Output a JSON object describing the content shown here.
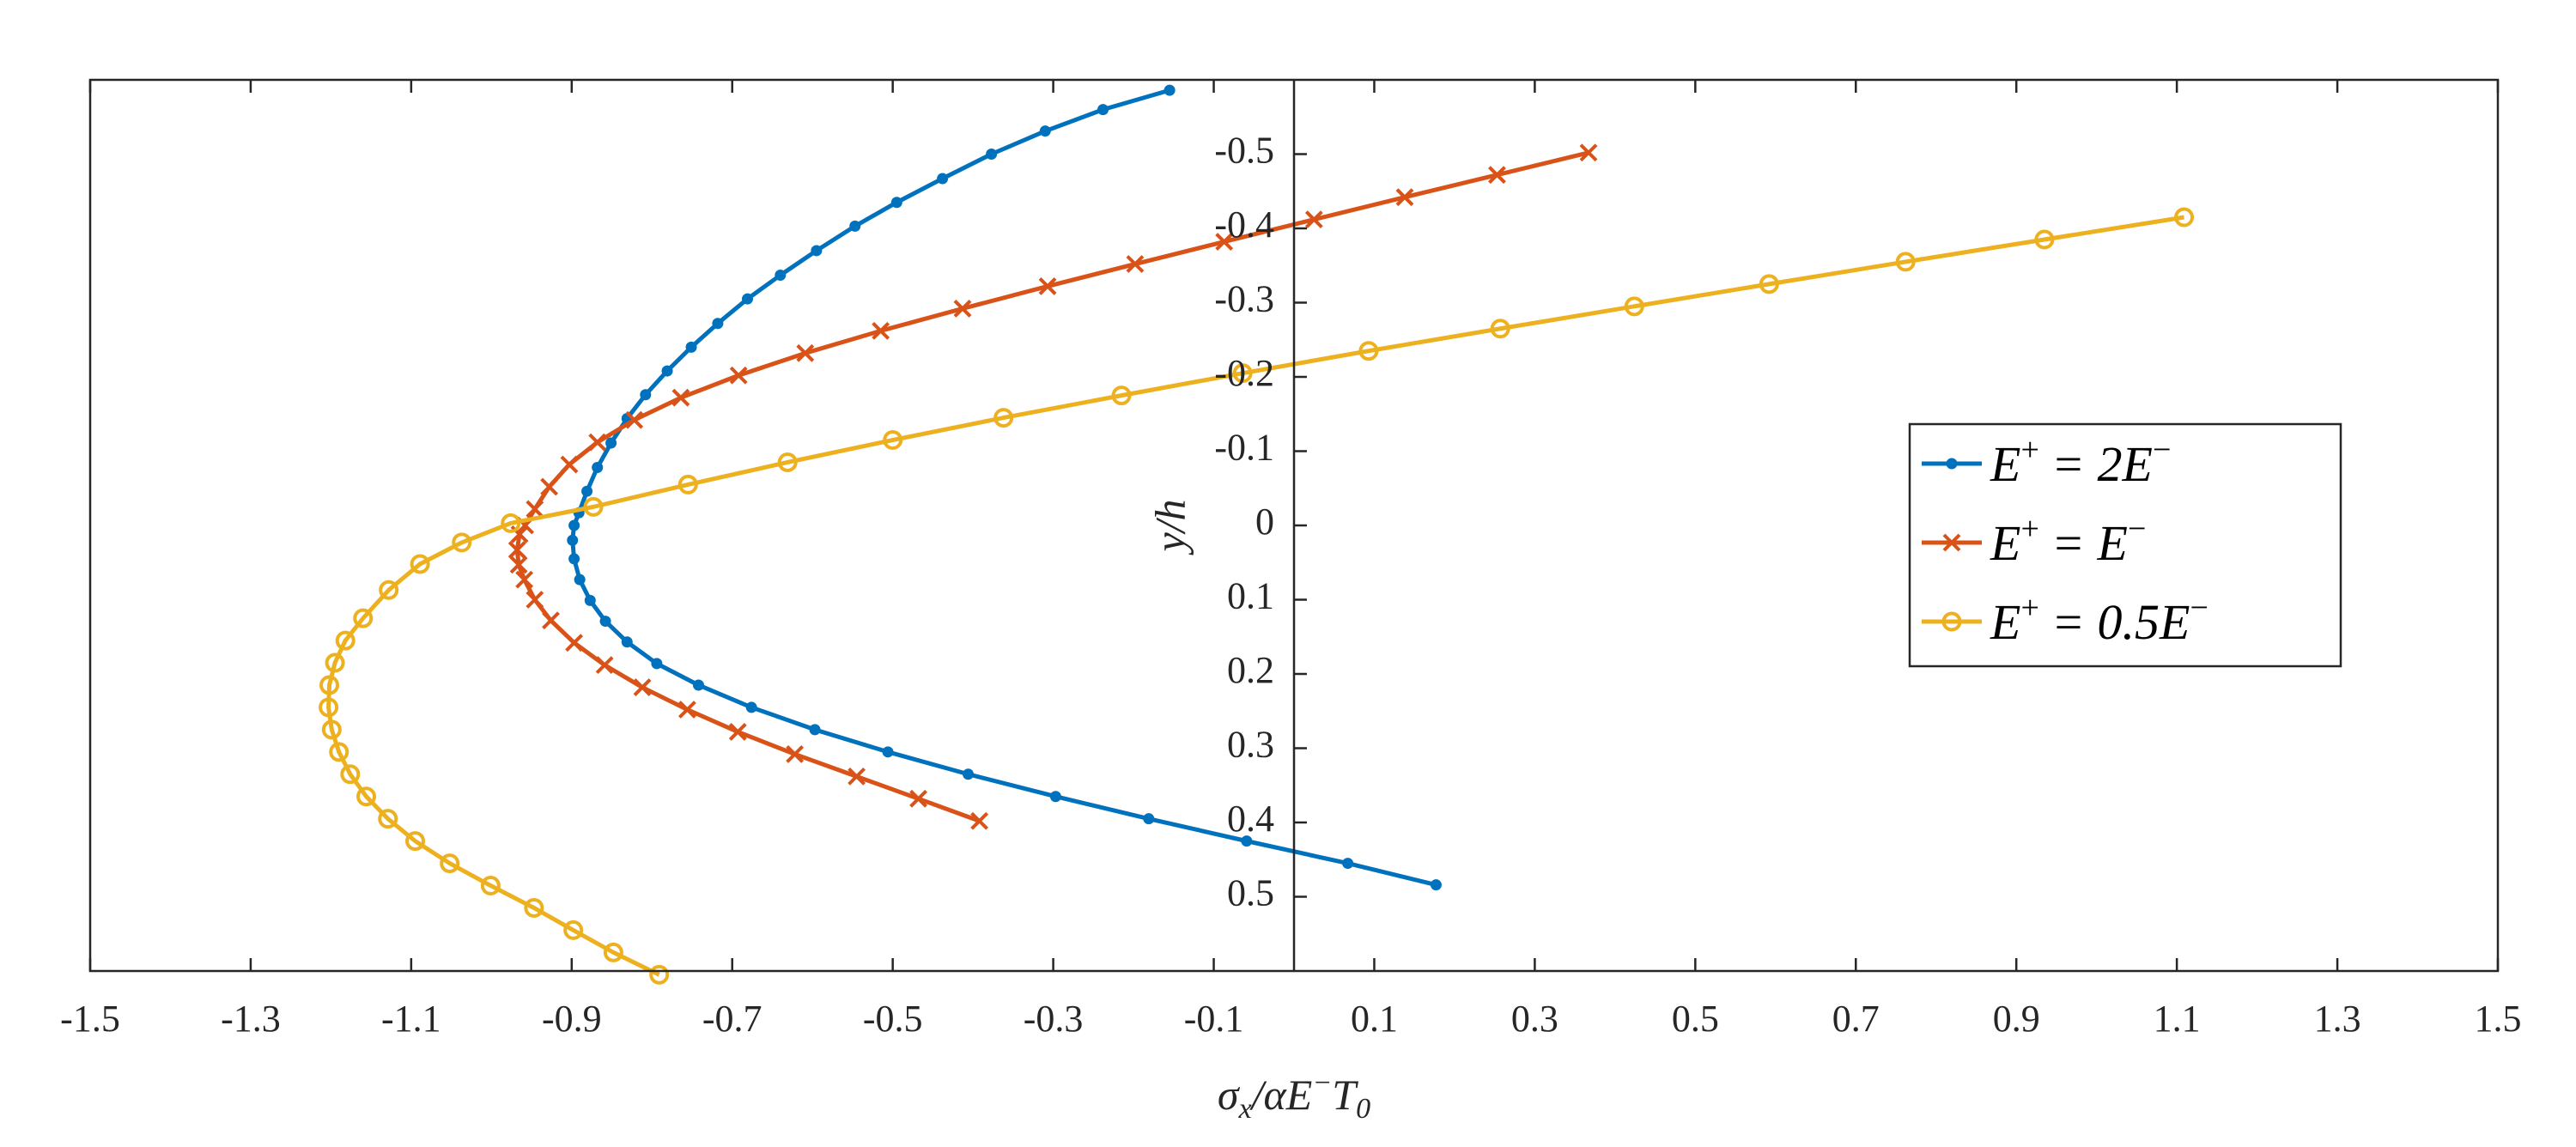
{
  "chart_data": {
    "type": "line",
    "xlabel": "σx/αE⁻T0",
    "xlabel_main": "σ",
    "xlabel_sub1": "x",
    "xlabel_mid": "/αE",
    "xlabel_sup": "−",
    "xlabel_t": "T",
    "xlabel_sub2": "0",
    "ylabel": "y/h",
    "xlim": [
      -1.5,
      1.5
    ],
    "ylim": [
      0.6,
      -0.6
    ],
    "x_ticks": [
      -1.5,
      -1.3,
      -1.1,
      -0.9,
      -0.7,
      -0.5,
      -0.3,
      -0.1,
      0.1,
      0.3,
      0.5,
      0.7,
      0.9,
      1.1,
      1.3,
      1.5
    ],
    "x_tick_labels": [
      "-1.5",
      "-1.3",
      "-1.1",
      "-0.9",
      "-0.7",
      "-0.5",
      "-0.3",
      "-0.1",
      "0.1",
      "0.3",
      "0.5",
      "0.7",
      "0.9",
      "1.1",
      "1.3",
      "1.5"
    ],
    "y_ticks": [
      -0.5,
      -0.4,
      -0.3,
      -0.2,
      -0.1,
      0,
      0.1,
      0.2,
      0.3,
      0.4,
      0.5
    ],
    "y_tick_labels": [
      "-0.5",
      "-0.4",
      "-0.3",
      "-0.2",
      "-0.1",
      "0",
      "0.1",
      "0.2",
      "0.3",
      "0.4",
      "0.5"
    ],
    "legend_position": "right",
    "series": [
      {
        "name": "E⁺ = 2E⁻",
        "legend": {
          "lhs": "E",
          "lhs_sup": "+",
          "rhs": "= 2E",
          "rhs_sup": "−"
        },
        "color": "#0072BD",
        "marker": "dot",
        "x": [
          -0.155,
          -0.238,
          -0.31,
          -0.377,
          -0.438,
          -0.495,
          -0.547,
          -0.595,
          -0.64,
          -0.681,
          -0.718,
          -0.751,
          -0.781,
          -0.808,
          -0.831,
          -0.851,
          -0.868,
          -0.881,
          -0.891,
          -0.897,
          -0.899,
          -0.897,
          -0.89,
          -0.877,
          -0.858,
          -0.831,
          -0.794,
          -0.742,
          -0.676,
          -0.597,
          -0.506,
          -0.406,
          -0.297,
          -0.181,
          -0.059,
          0.067,
          0.177
        ],
        "y": [
          -0.586,
          -0.56,
          -0.531,
          -0.5,
          -0.467,
          -0.435,
          -0.403,
          -0.37,
          -0.337,
          -0.305,
          -0.272,
          -0.24,
          -0.208,
          -0.176,
          -0.144,
          -0.111,
          -0.078,
          -0.046,
          -0.017,
          0.0,
          0.02,
          0.045,
          0.073,
          0.101,
          0.129,
          0.157,
          0.186,
          0.215,
          0.245,
          0.275,
          0.305,
          0.335,
          0.365,
          0.395,
          0.425,
          0.455,
          0.484
        ]
      },
      {
        "name": "E⁺ = E⁻",
        "legend": {
          "lhs": "E",
          "lhs_sup": "+",
          "rhs": "= E",
          "rhs_sup": "−"
        },
        "color": "#D95319",
        "marker": "x",
        "x": [
          0.367,
          0.253,
          0.138,
          0.025,
          -0.087,
          -0.198,
          -0.307,
          -0.413,
          -0.515,
          -0.609,
          -0.692,
          -0.764,
          -0.822,
          -0.868,
          -0.903,
          -0.928,
          -0.946,
          -0.958,
          -0.965,
          -0.968,
          -0.966,
          -0.959,
          -0.946,
          -0.926,
          -0.897,
          -0.859,
          -0.812,
          -0.756,
          -0.693,
          -0.622,
          -0.545,
          -0.468,
          -0.392
        ],
        "y": [
          -0.502,
          -0.472,
          -0.442,
          -0.412,
          -0.382,
          -0.352,
          -0.322,
          -0.292,
          -0.262,
          -0.232,
          -0.202,
          -0.172,
          -0.142,
          -0.112,
          -0.082,
          -0.052,
          -0.022,
          0.0,
          0.012,
          0.033,
          0.053,
          0.073,
          0.1,
          0.128,
          0.158,
          0.188,
          0.218,
          0.248,
          0.278,
          0.308,
          0.338,
          0.368,
          0.398
        ]
      },
      {
        "name": "E⁺ = 0.5E⁻",
        "legend": {
          "lhs": "E",
          "lhs_sup": "+",
          "rhs": "= 0.5E",
          "rhs_sup": "−"
        },
        "color": "#EDB120",
        "marker": "circle",
        "x": [
          1.109,
          0.935,
          0.762,
          0.592,
          0.424,
          0.257,
          0.093,
          -0.064,
          -0.215,
          -0.362,
          -0.5,
          -0.631,
          -0.755,
          -0.873,
          -0.976,
          -1.037,
          -1.089,
          -1.128,
          -1.16,
          -1.182,
          -1.195,
          -1.202,
          -1.203,
          -1.199,
          -1.19,
          -1.176,
          -1.156,
          -1.129,
          -1.095,
          -1.052,
          -1.001,
          -0.947,
          -0.898,
          -0.848,
          -0.791
        ],
        "y": [
          -0.415,
          -0.385,
          -0.355,
          -0.325,
          -0.295,
          -0.265,
          -0.235,
          -0.205,
          -0.175,
          -0.145,
          -0.115,
          -0.085,
          -0.055,
          -0.025,
          -0.003,
          0.023,
          0.052,
          0.087,
          0.125,
          0.155,
          0.185,
          0.215,
          0.245,
          0.275,
          0.305,
          0.335,
          0.365,
          0.395,
          0.425,
          0.455,
          0.485,
          0.515,
          0.545,
          0.575,
          0.605
        ]
      }
    ]
  }
}
